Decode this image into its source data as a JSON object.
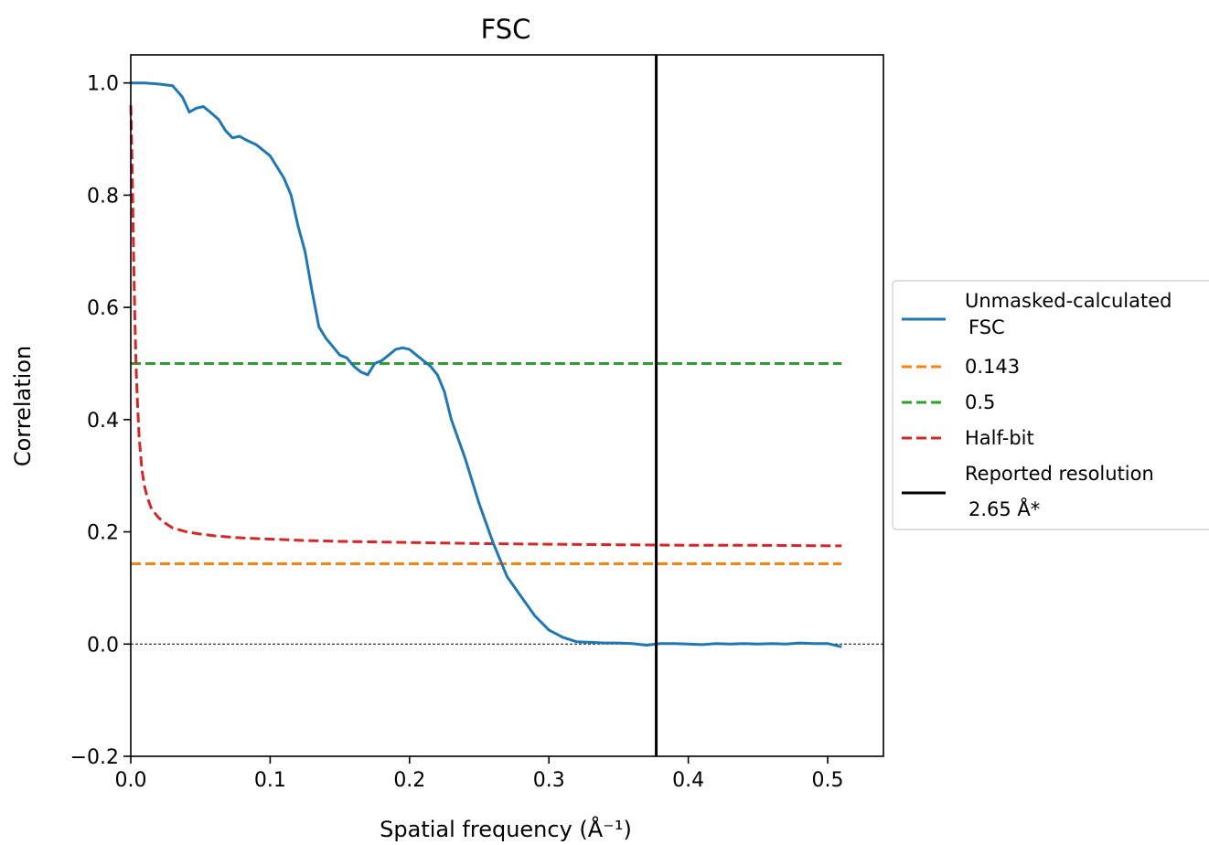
{
  "chart_data": {
    "type": "line",
    "title": "FSC",
    "xlabel": "Spatial frequency (Å⁻¹)",
    "ylabel": "Correlation",
    "xlim": [
      0.0,
      0.54
    ],
    "ylim": [
      -0.2,
      1.05
    ],
    "xticks": [
      0.0,
      0.1,
      0.2,
      0.3,
      0.4,
      0.5
    ],
    "xtick_labels": [
      "0.0",
      "0.1",
      "0.2",
      "0.3",
      "0.4",
      "0.5"
    ],
    "yticks": [
      -0.2,
      0.0,
      0.2,
      0.4,
      0.6,
      0.8,
      1.0
    ],
    "ytick_labels": [
      "−0.2",
      "0.0",
      "0.2",
      "0.4",
      "0.6",
      "0.8",
      "1.0"
    ],
    "grid": false,
    "legend_position": "outside-right",
    "zero_line": {
      "y": 0.0,
      "style": "dashed",
      "color": "#000000"
    },
    "series": [
      {
        "name": "Unmasked-calculated\n FSC",
        "color": "#1f77b4",
        "style": "solid",
        "x": [
          0.0,
          0.01,
          0.02,
          0.03,
          0.037,
          0.042,
          0.047,
          0.052,
          0.057,
          0.063,
          0.068,
          0.073,
          0.078,
          0.083,
          0.09,
          0.1,
          0.11,
          0.115,
          0.12,
          0.125,
          0.13,
          0.135,
          0.14,
          0.145,
          0.15,
          0.155,
          0.16,
          0.165,
          0.17,
          0.175,
          0.18,
          0.185,
          0.19,
          0.195,
          0.2,
          0.205,
          0.21,
          0.215,
          0.22,
          0.225,
          0.23,
          0.24,
          0.25,
          0.26,
          0.27,
          0.28,
          0.29,
          0.3,
          0.31,
          0.32,
          0.33,
          0.34,
          0.35,
          0.36,
          0.37,
          0.38,
          0.39,
          0.4,
          0.41,
          0.42,
          0.43,
          0.44,
          0.45,
          0.46,
          0.47,
          0.48,
          0.49,
          0.5,
          0.51
        ],
        "y": [
          1.0,
          1.0,
          0.998,
          0.995,
          0.975,
          0.948,
          0.955,
          0.958,
          0.948,
          0.935,
          0.915,
          0.902,
          0.905,
          0.898,
          0.89,
          0.87,
          0.83,
          0.8,
          0.745,
          0.7,
          0.63,
          0.565,
          0.545,
          0.53,
          0.515,
          0.51,
          0.495,
          0.485,
          0.48,
          0.5,
          0.505,
          0.515,
          0.525,
          0.528,
          0.525,
          0.515,
          0.505,
          0.495,
          0.48,
          0.45,
          0.4,
          0.33,
          0.25,
          0.18,
          0.12,
          0.085,
          0.05,
          0.025,
          0.012,
          0.004,
          0.003,
          0.002,
          0.002,
          0.001,
          -0.002,
          0.001,
          0.001,
          0.0,
          -0.001,
          0.001,
          0.0,
          0.001,
          0.0,
          0.001,
          0.0,
          0.002,
          0.001,
          0.001,
          -0.005
        ]
      },
      {
        "name": "0.143",
        "color": "#ff7f0e",
        "style": "dashed",
        "x": [
          0.0,
          0.51
        ],
        "y": [
          0.143,
          0.143
        ]
      },
      {
        "name": "0.5",
        "color": "#2ca02c",
        "style": "dashed",
        "x": [
          0.0,
          0.51
        ],
        "y": [
          0.5,
          0.5
        ]
      },
      {
        "name": "Half-bit",
        "color": "#d62728",
        "style": "dashed",
        "x": [
          0.0,
          0.001,
          0.002,
          0.003,
          0.004,
          0.005,
          0.006,
          0.008,
          0.01,
          0.012,
          0.015,
          0.02,
          0.025,
          0.03,
          0.04,
          0.05,
          0.06,
          0.08,
          0.1,
          0.12,
          0.15,
          0.2,
          0.25,
          0.3,
          0.35,
          0.4,
          0.45,
          0.51
        ],
        "y": [
          0.96,
          0.85,
          0.7,
          0.57,
          0.48,
          0.42,
          0.37,
          0.31,
          0.28,
          0.26,
          0.24,
          0.225,
          0.215,
          0.207,
          0.2,
          0.196,
          0.193,
          0.189,
          0.187,
          0.185,
          0.183,
          0.181,
          0.179,
          0.178,
          0.177,
          0.176,
          0.176,
          0.175
        ]
      },
      {
        "name": "Reported resolution\n 2.65 Å*",
        "color": "#000000",
        "style": "solid",
        "vertical_x": 0.377
      }
    ]
  }
}
